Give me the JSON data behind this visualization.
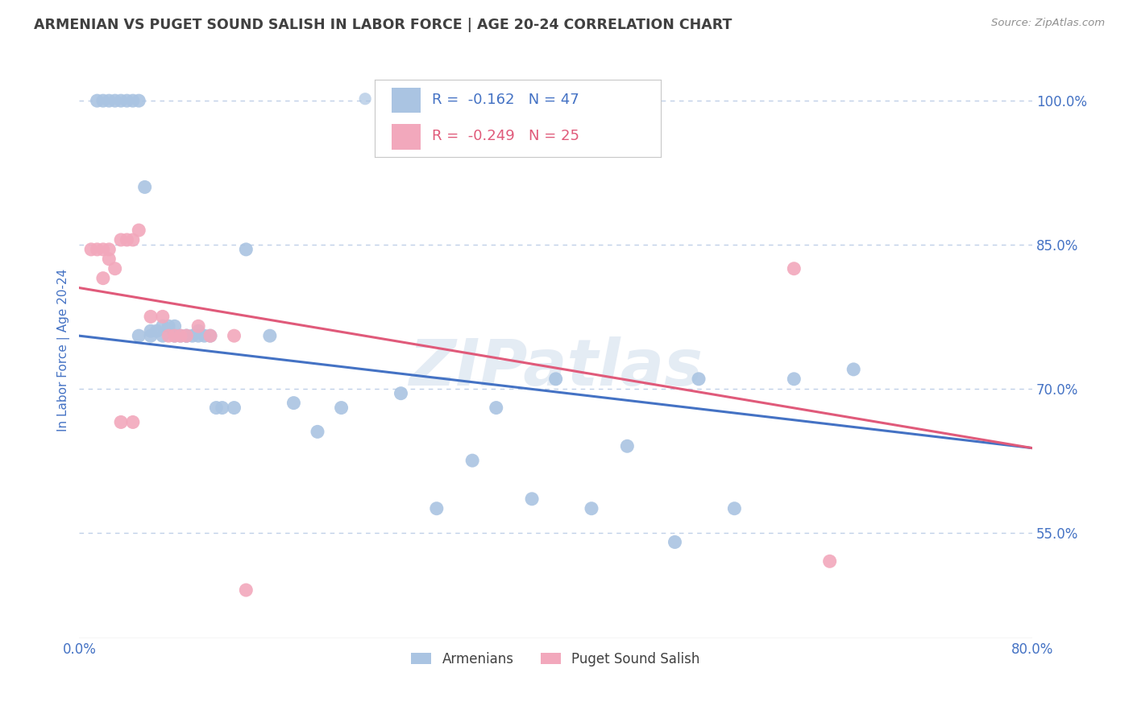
{
  "title": "ARMENIAN VS PUGET SOUND SALISH IN LABOR FORCE | AGE 20-24 CORRELATION CHART",
  "source": "Source: ZipAtlas.com",
  "ylabel": "In Labor Force | Age 20-24",
  "watermark": "ZIPatlas",
  "legend_armenians": "Armenians",
  "legend_puget": "Puget Sound Salish",
  "r_armenians": -0.162,
  "n_armenians": 47,
  "r_puget": -0.249,
  "n_puget": 25,
  "x_min": 0.0,
  "x_max": 0.8,
  "y_min": 0.44,
  "y_max": 1.04,
  "x_ticks": [
    0.0,
    0.1,
    0.2,
    0.3,
    0.4,
    0.5,
    0.6,
    0.7,
    0.8
  ],
  "x_tick_labels": [
    "0.0%",
    "",
    "",
    "",
    "",
    "",
    "",
    "",
    "80.0%"
  ],
  "y_ticks": [
    0.55,
    0.7,
    0.85,
    1.0
  ],
  "y_tick_labels": [
    "55.0%",
    "70.0%",
    "85.0%",
    "100.0%"
  ],
  "color_armenians": "#aac4e2",
  "color_puget": "#f2a8bc",
  "line_color_armenians": "#4472c4",
  "line_color_puget": "#e05a7a",
  "background_color": "#ffffff",
  "grid_color": "#c0d0e8",
  "title_color": "#404040",
  "source_color": "#909090",
  "axis_label_color": "#4472c4",
  "arm_line_x0": 0.0,
  "arm_line_y0": 0.755,
  "arm_line_x1": 0.8,
  "arm_line_y1": 0.638,
  "puget_line_x0": 0.0,
  "puget_line_y0": 0.805,
  "puget_line_x1": 0.8,
  "puget_line_y1": 0.638,
  "armenians_x": [
    0.015,
    0.02,
    0.025,
    0.03,
    0.035,
    0.04,
    0.045,
    0.05,
    0.055,
    0.06,
    0.065,
    0.07,
    0.075,
    0.08,
    0.085,
    0.09,
    0.095,
    0.1,
    0.105,
    0.11,
    0.115,
    0.12,
    0.13,
    0.14,
    0.16,
    0.18,
    0.2,
    0.22,
    0.27,
    0.3,
    0.33,
    0.35,
    0.38,
    0.4,
    0.43,
    0.46,
    0.5,
    0.52,
    0.55,
    0.6,
    0.65,
    0.05,
    0.06,
    0.07,
    0.08,
    0.09,
    0.1
  ],
  "armenians_y": [
    1.0,
    1.0,
    1.0,
    1.0,
    1.0,
    1.0,
    1.0,
    1.0,
    0.91,
    0.76,
    0.76,
    0.765,
    0.765,
    0.765,
    0.755,
    0.755,
    0.755,
    0.76,
    0.755,
    0.755,
    0.68,
    0.68,
    0.68,
    0.845,
    0.755,
    0.685,
    0.655,
    0.68,
    0.695,
    0.575,
    0.625,
    0.68,
    0.585,
    0.71,
    0.575,
    0.64,
    0.54,
    0.71,
    0.575,
    0.71,
    0.72,
    0.755,
    0.755,
    0.755,
    0.755,
    0.755,
    0.755
  ],
  "puget_x": [
    0.01,
    0.015,
    0.02,
    0.02,
    0.025,
    0.03,
    0.035,
    0.04,
    0.045,
    0.05,
    0.06,
    0.07,
    0.075,
    0.08,
    0.085,
    0.09,
    0.1,
    0.11,
    0.13,
    0.14,
    0.6,
    0.63,
    0.025,
    0.035,
    0.045
  ],
  "puget_y": [
    0.845,
    0.845,
    0.845,
    0.815,
    0.835,
    0.825,
    0.855,
    0.855,
    0.855,
    0.865,
    0.775,
    0.775,
    0.755,
    0.755,
    0.755,
    0.755,
    0.765,
    0.755,
    0.755,
    0.49,
    0.825,
    0.52,
    0.845,
    0.665,
    0.665
  ]
}
